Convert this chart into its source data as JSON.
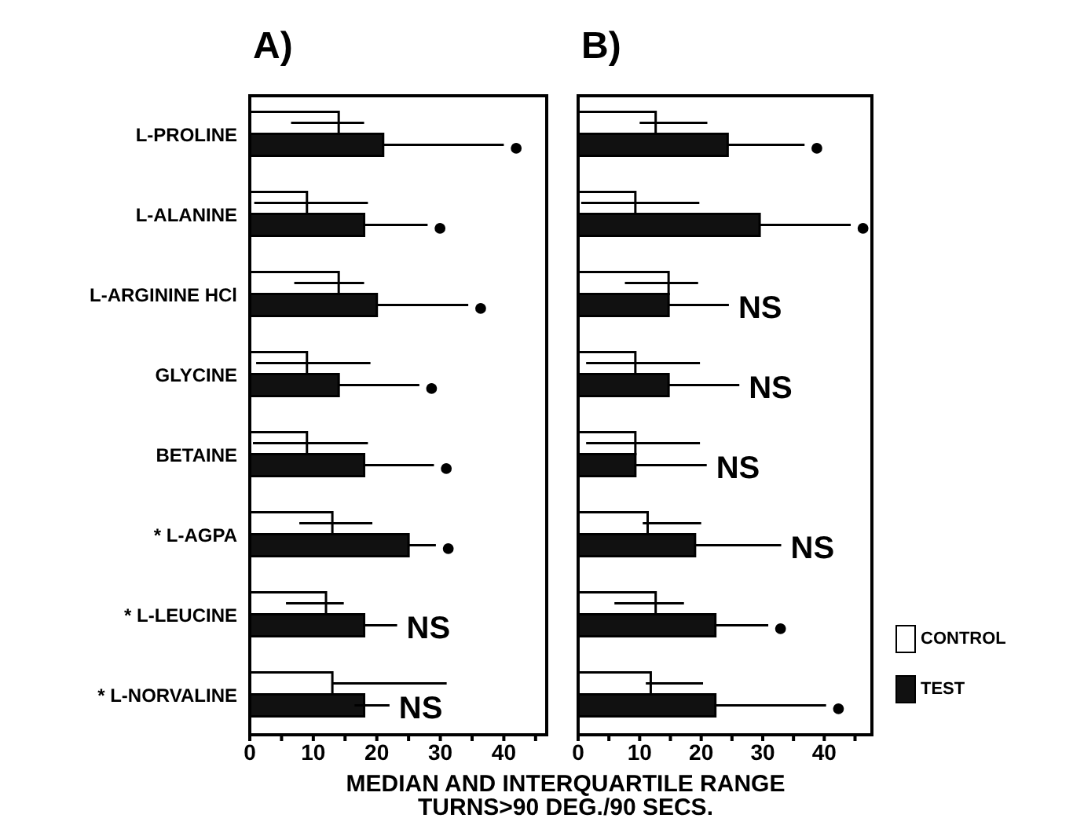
{
  "chart_data": [
    {
      "type": "bar",
      "title": "A)",
      "orientation": "horizontal",
      "xlabel": "MEDIAN AND INTERQUARTILE RANGE\nTURNS>90 DEG./90 SECS.",
      "categories": [
        "L-PROLINE",
        "L-ALANINE",
        "L-ARGININE HCl",
        "GLYCINE",
        "BETAINE",
        "* L-AGPA",
        "* L-LEUCINE",
        "* L-NORVALINE"
      ],
      "series": [
        {
          "name": "CONTROL",
          "color": "#ffffff",
          "values": [
            14,
            9,
            14,
            9,
            9,
            13,
            12,
            13
          ],
          "errors": [
            [
              6.5,
              18
            ],
            [
              0.7,
              18.6
            ],
            [
              7,
              18
            ],
            [
              1,
              19
            ],
            [
              0.5,
              18.6
            ],
            [
              7.8,
              19.3
            ],
            [
              5.7,
              14.8
            ],
            [
              13,
              31
            ]
          ]
        },
        {
          "name": "TEST",
          "color": "#111111",
          "values": [
            21,
            18,
            20,
            14,
            18,
            25,
            18,
            18
          ],
          "errors": [
            [
              21,
              40
            ],
            [
              18,
              28
            ],
            [
              20,
              34.4
            ],
            [
              14,
              26.7
            ],
            [
              18,
              29
            ],
            [
              25,
              29.3
            ],
            [
              18,
              23.2
            ],
            [
              16.5,
              22
            ]
          ]
        }
      ],
      "xlim": [
        0,
        47
      ],
      "xticks": [
        0,
        {
          "value": 5,
          "label": null
        },
        10,
        {
          "value": 15,
          "label": null
        },
        20,
        {
          "value": 25,
          "label": null
        },
        30,
        {
          "value": 35,
          "label": null
        },
        40,
        {
          "value": 45,
          "label": null
        }
      ],
      "annotations": [
        "●",
        "●",
        "●",
        "●",
        "●",
        "●",
        "NS",
        "NS"
      ],
      "legend": "right",
      "grid": false
    },
    {
      "type": "bar",
      "title": "B)",
      "orientation": "horizontal",
      "tick_labels": "x",
      "categories": [
        null,
        null,
        null,
        null,
        null,
        null,
        null,
        null
      ],
      "series": [
        {
          "color": "#ffffff",
          "values": [
            12.6,
            9.3,
            14.7,
            9.3,
            9.3,
            11.3,
            12.6,
            11.8
          ],
          "errors": [
            [
              10,
              21
            ],
            [
              0.5,
              19.7
            ],
            [
              7.6,
              19.5
            ],
            [
              1.3,
              19.8
            ],
            [
              1.3,
              19.8
            ],
            [
              10.5,
              20
            ],
            [
              5.9,
              17.2
            ],
            [
              11,
              20.3
            ]
          ]
        },
        {
          "color": "#111111",
          "values": [
            24.3,
            29.5,
            14.7,
            14.7,
            9.3,
            19,
            22.3,
            22.3
          ],
          "errors": [
            [
              24.3,
              36.8
            ],
            [
              29.5,
              44.3
            ],
            [
              14.7,
              24.5
            ],
            [
              14.7,
              26.2
            ],
            [
              9.3,
              20.9
            ],
            [
              19,
              33
            ],
            [
              22.3,
              30.9
            ],
            [
              22.3,
              40.3
            ]
          ]
        }
      ],
      "xlim": [
        0,
        48
      ],
      "xticks": [
        0,
        {
          "value": 5,
          "label": null
        },
        10,
        {
          "value": 15,
          "label": null
        },
        20,
        {
          "value": 25,
          "label": null
        },
        30,
        {
          "value": 35,
          "label": null
        },
        40,
        {
          "value": 45,
          "label": null
        }
      ],
      "annotations": [
        "●",
        "●",
        "NS",
        "NS",
        "NS",
        "NS",
        "●",
        "●"
      ],
      "grid": false
    }
  ]
}
